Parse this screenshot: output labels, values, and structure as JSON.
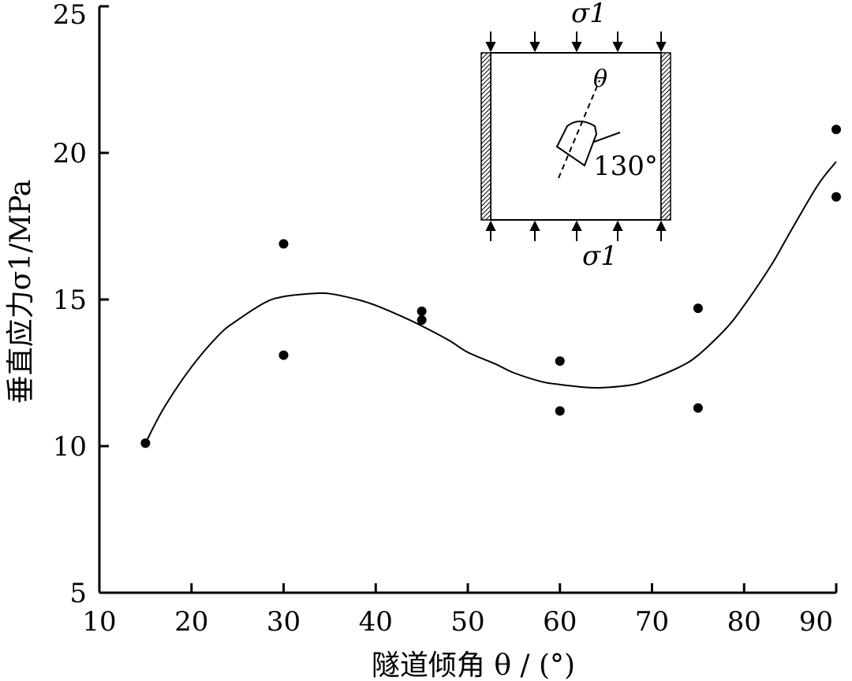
{
  "chart_data": {
    "type": "scatter",
    "xlabel": "隧道倾角 θ / (°)",
    "ylabel": "垂直应力σ1/MPa",
    "xlim": [
      10,
      90
    ],
    "ylim": [
      5,
      25
    ],
    "xticks": [
      10,
      20,
      30,
      40,
      50,
      60,
      70,
      80,
      90
    ],
    "yticks": [
      5,
      10,
      15,
      20,
      25
    ],
    "grid": false,
    "series": [
      {
        "kind": "points",
        "x": [
          15,
          30,
          30,
          45,
          45,
          60,
          60,
          75,
          75,
          90,
          90
        ],
        "y": [
          10.1,
          16.9,
          13.1,
          14.6,
          14.3,
          12.9,
          11.2,
          14.7,
          11.3,
          20.8,
          18.5
        ]
      },
      {
        "kind": "fit-curve",
        "x": [
          15,
          17,
          20,
          23,
          25,
          28,
          30,
          33,
          35,
          38,
          40,
          43,
          45,
          48,
          50,
          53,
          55,
          58,
          60,
          63,
          65,
          68,
          70,
          73,
          75,
          78,
          80,
          83,
          85,
          88,
          90
        ],
        "y": [
          10.1,
          11.3,
          12.7,
          13.8,
          14.3,
          14.9,
          15.1,
          15.2,
          15.2,
          15.0,
          14.8,
          14.4,
          14.1,
          13.6,
          13.2,
          12.8,
          12.5,
          12.2,
          12.1,
          12.0,
          12.0,
          12.1,
          12.3,
          12.7,
          13.1,
          14.0,
          14.8,
          16.2,
          17.3,
          18.9,
          19.7
        ]
      }
    ],
    "inset": {
      "sigma_top": "σ1",
      "sigma_bottom": "σ1",
      "theta_label": "θ",
      "angle_label": "130°"
    }
  }
}
